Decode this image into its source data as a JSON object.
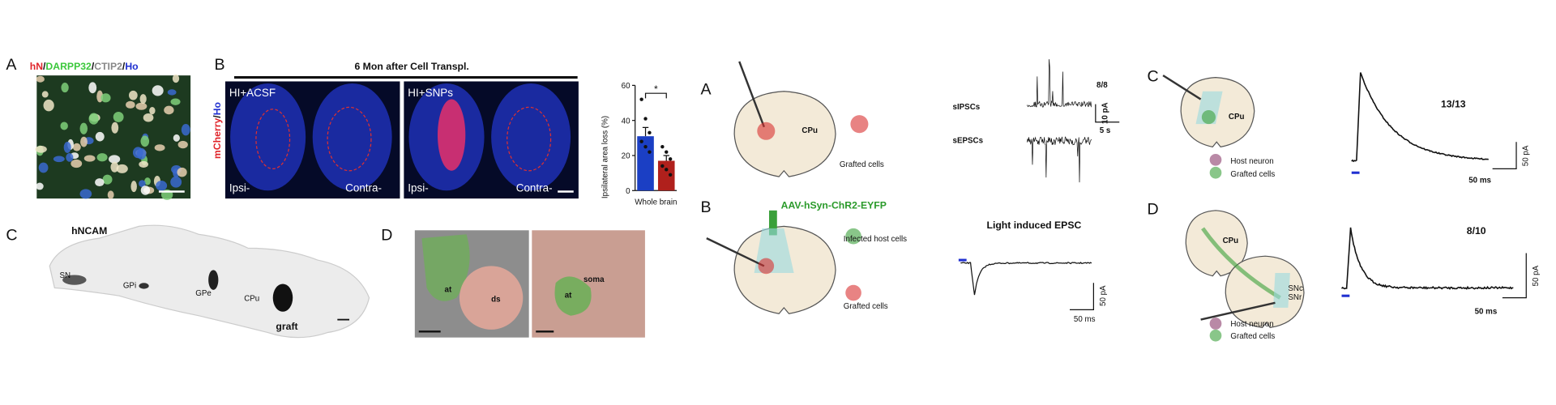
{
  "figure_left": {
    "panel_a": {
      "label": "A",
      "stain": [
        "hN",
        "/",
        "DARPP32",
        "/",
        "CTIP2",
        "/",
        "Ho"
      ]
    },
    "panel_b": {
      "label": "B",
      "title": "6 Mon after Cell Transpl.",
      "stain": [
        "mCherry",
        "/",
        "Ho"
      ],
      "images": [
        {
          "condition": "HI+ACSF",
          "ipsi": "Ipsi-",
          "contra": "Contra-"
        },
        {
          "condition": "HI+SNPs",
          "ipsi": "Ipsi-",
          "contra": "Contra-"
        }
      ]
    },
    "panel_c": {
      "label": "C",
      "stain": "hNCAM",
      "regions": [
        "SN",
        "GPi",
        "GPe",
        "CPu"
      ],
      "graft": "graft"
    },
    "panel_d": {
      "label": "D",
      "left": [
        "at",
        "ds"
      ],
      "right": [
        "at",
        "soma"
      ]
    }
  },
  "chart_data": {
    "type": "bar",
    "ylabel": "Ipsilateral area loss (%)",
    "xlabel": "Whole brain",
    "categories": [
      null,
      null
    ],
    "values": [
      31,
      17
    ],
    "errors": [
      5,
      3
    ],
    "colors": [
      "#1b3fc4",
      "#b0201c"
    ],
    "points": [
      [
        52,
        41,
        33,
        28,
        25,
        22
      ],
      [
        25,
        22,
        18,
        14,
        12,
        9
      ]
    ],
    "significance": "*",
    "ylim": [
      0,
      60
    ],
    "yticks": [
      0,
      20,
      40,
      60
    ]
  },
  "figure_right": {
    "panel_a": {
      "label": "A",
      "region": "CPu",
      "cells": "Grafted cells",
      "ratio": "8/8",
      "traces": [
        "sIPSCs",
        "sEPSCs"
      ],
      "scale_y": "10 pA",
      "scale_x": "5 s"
    },
    "panel_b": {
      "label": "B",
      "virus": "AAV-hSyn-ChR2-EYFP",
      "cells": [
        "Infected host cells",
        "Grafted cells"
      ],
      "title": "Light induced EPSC",
      "scale_y": "50 pA",
      "scale_x": "50 ms"
    },
    "panel_c": {
      "label": "C",
      "region": "CPu",
      "cells": [
        "Host neuron",
        "Grafted cells"
      ],
      "ratio": "13/13",
      "scale_y": "50 pA",
      "scale_x": "50 ms"
    },
    "panel_d": {
      "label": "D",
      "region": "CPu",
      "target": [
        "SNc",
        "SNr"
      ],
      "cells": [
        "Host neuron",
        "Grafted cells"
      ],
      "ratio": "8/10",
      "scale_y": "50 pA",
      "scale_x": "50 ms"
    }
  }
}
